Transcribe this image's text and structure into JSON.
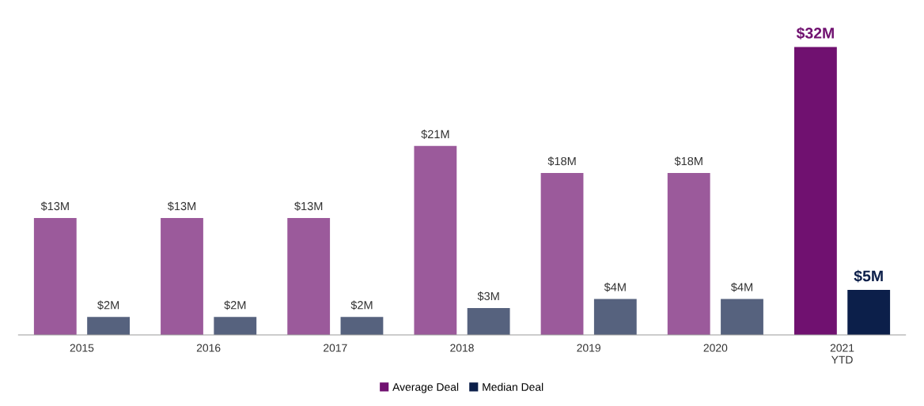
{
  "chart_data": {
    "type": "bar",
    "categories": [
      "2015",
      "2016",
      "2017",
      "2018",
      "2019",
      "2020",
      "2021\nYTD"
    ],
    "series": [
      {
        "name": "Average Deal",
        "color": "#701170",
        "colors": [
          "#9b5a9b",
          "#9b5a9b",
          "#9b5a9b",
          "#9b5a9b",
          "#9b5a9b",
          "#9b5a9b",
          "#701170"
        ],
        "values": [
          13,
          13,
          13,
          21,
          18,
          18,
          32
        ],
        "value_labels": [
          "$13M",
          "$13M",
          "$13M",
          "$21M",
          "$18M",
          "$18M",
          "$32M"
        ]
      },
      {
        "name": "Median Deal",
        "color": "#0c1f4a",
        "colors": [
          "#56627e",
          "#56627e",
          "#56627e",
          "#56627e",
          "#56627e",
          "#56627e",
          "#0c1f4a"
        ],
        "values": [
          2,
          2,
          2,
          3,
          4,
          4,
          5
        ],
        "value_labels": [
          "$2M",
          "$2M",
          "$2M",
          "$3M",
          "$4M",
          "$4M",
          "$5M"
        ]
      }
    ],
    "legend": "bottom",
    "grid": false
  }
}
